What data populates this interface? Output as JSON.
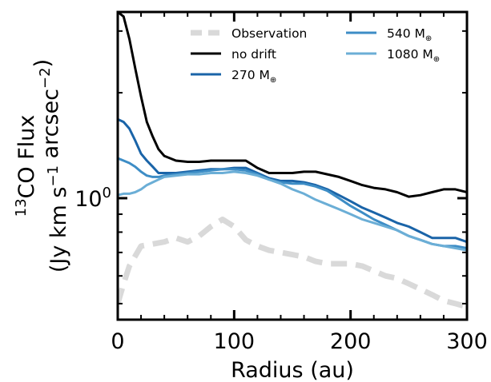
{
  "chart_data": {
    "type": "line",
    "xlabel": "Radius (au)",
    "ylabel_line1_prefix": "13",
    "ylabel_line1_text": "CO Flux",
    "ylabel_line2": "(Jy km s⁻¹ arcsec⁻²)",
    "xlim": [
      0,
      300
    ],
    "ylim": [
      0.45,
      3.4
    ],
    "yscale": "log",
    "x_ticks": [
      0,
      100,
      200,
      300
    ],
    "x_tick_labels": [
      "0",
      "100",
      "200",
      "300"
    ],
    "y_ticks": [
      1.0
    ],
    "y_tick_labels": [
      "10⁰"
    ],
    "legend_position": "top",
    "series": [
      {
        "name": "Observation",
        "color": "#d9d9d9",
        "dash": "dashed",
        "x": [
          0,
          5,
          10,
          20,
          30,
          40,
          50,
          60,
          70,
          80,
          90,
          100,
          110,
          120,
          130,
          140,
          150,
          160,
          170,
          180,
          190,
          200,
          210,
          220,
          230,
          240,
          250,
          260,
          270,
          280,
          290,
          300
        ],
        "y": [
          0.5,
          0.57,
          0.64,
          0.73,
          0.74,
          0.75,
          0.77,
          0.75,
          0.78,
          0.83,
          0.87,
          0.83,
          0.76,
          0.73,
          0.71,
          0.7,
          0.69,
          0.68,
          0.66,
          0.65,
          0.65,
          0.65,
          0.64,
          0.62,
          0.6,
          0.59,
          0.57,
          0.55,
          0.53,
          0.51,
          0.5,
          0.49
        ]
      },
      {
        "name": "no drift",
        "color": "#000000",
        "dash": "solid",
        "x": [
          0,
          5,
          10,
          15,
          20,
          25,
          30,
          35,
          40,
          50,
          60,
          70,
          80,
          90,
          100,
          110,
          115,
          120,
          130,
          140,
          150,
          160,
          170,
          180,
          190,
          200,
          210,
          220,
          230,
          240,
          250,
          260,
          270,
          280,
          290,
          300
        ],
        "y": [
          3.4,
          3.3,
          2.85,
          2.35,
          1.95,
          1.65,
          1.5,
          1.38,
          1.32,
          1.28,
          1.27,
          1.27,
          1.28,
          1.28,
          1.28,
          1.28,
          1.25,
          1.22,
          1.18,
          1.18,
          1.18,
          1.19,
          1.19,
          1.17,
          1.15,
          1.12,
          1.09,
          1.07,
          1.06,
          1.04,
          1.01,
          1.02,
          1.04,
          1.06,
          1.06,
          1.04
        ]
      },
      {
        "name": "270 M⊕",
        "color": "#1a64a8",
        "dash": "solid",
        "x": [
          0,
          5,
          10,
          15,
          20,
          25,
          30,
          35,
          40,
          50,
          60,
          70,
          80,
          90,
          100,
          110,
          120,
          130,
          140,
          150,
          160,
          170,
          180,
          190,
          200,
          210,
          220,
          230,
          240,
          250,
          260,
          270,
          280,
          290,
          300
        ],
        "y": [
          1.68,
          1.65,
          1.58,
          1.46,
          1.34,
          1.28,
          1.23,
          1.18,
          1.18,
          1.18,
          1.19,
          1.2,
          1.21,
          1.21,
          1.22,
          1.22,
          1.18,
          1.14,
          1.12,
          1.12,
          1.11,
          1.09,
          1.06,
          1.02,
          0.98,
          0.94,
          0.91,
          0.88,
          0.85,
          0.83,
          0.8,
          0.77,
          0.77,
          0.77,
          0.75
        ]
      },
      {
        "name": "540 M⊕",
        "color": "#3d8dc6",
        "dash": "solid",
        "x": [
          0,
          5,
          10,
          15,
          20,
          25,
          30,
          35,
          40,
          50,
          60,
          70,
          80,
          90,
          100,
          110,
          120,
          130,
          140,
          150,
          160,
          170,
          180,
          190,
          200,
          210,
          220,
          230,
          240,
          250,
          260,
          270,
          280,
          290,
          300
        ],
        "y": [
          1.3,
          1.28,
          1.26,
          1.23,
          1.19,
          1.16,
          1.15,
          1.15,
          1.16,
          1.17,
          1.18,
          1.19,
          1.2,
          1.21,
          1.21,
          1.2,
          1.17,
          1.13,
          1.11,
          1.1,
          1.1,
          1.08,
          1.05,
          1.0,
          0.95,
          0.91,
          0.87,
          0.84,
          0.81,
          0.78,
          0.76,
          0.74,
          0.73,
          0.73,
          0.72
        ]
      },
      {
        "name": "1080 M⊕",
        "color": "#6baed6",
        "dash": "solid",
        "x": [
          0,
          5,
          10,
          15,
          20,
          25,
          30,
          35,
          40,
          50,
          60,
          70,
          80,
          90,
          100,
          110,
          120,
          130,
          140,
          150,
          160,
          170,
          180,
          190,
          200,
          210,
          220,
          230,
          240,
          250,
          260,
          270,
          280,
          290,
          300
        ],
        "y": [
          1.02,
          1.03,
          1.03,
          1.04,
          1.06,
          1.09,
          1.11,
          1.13,
          1.15,
          1.16,
          1.17,
          1.17,
          1.18,
          1.18,
          1.19,
          1.18,
          1.16,
          1.13,
          1.1,
          1.06,
          1.03,
          0.99,
          0.96,
          0.93,
          0.9,
          0.87,
          0.85,
          0.83,
          0.81,
          0.78,
          0.76,
          0.74,
          0.73,
          0.72,
          0.71
        ]
      }
    ]
  }
}
